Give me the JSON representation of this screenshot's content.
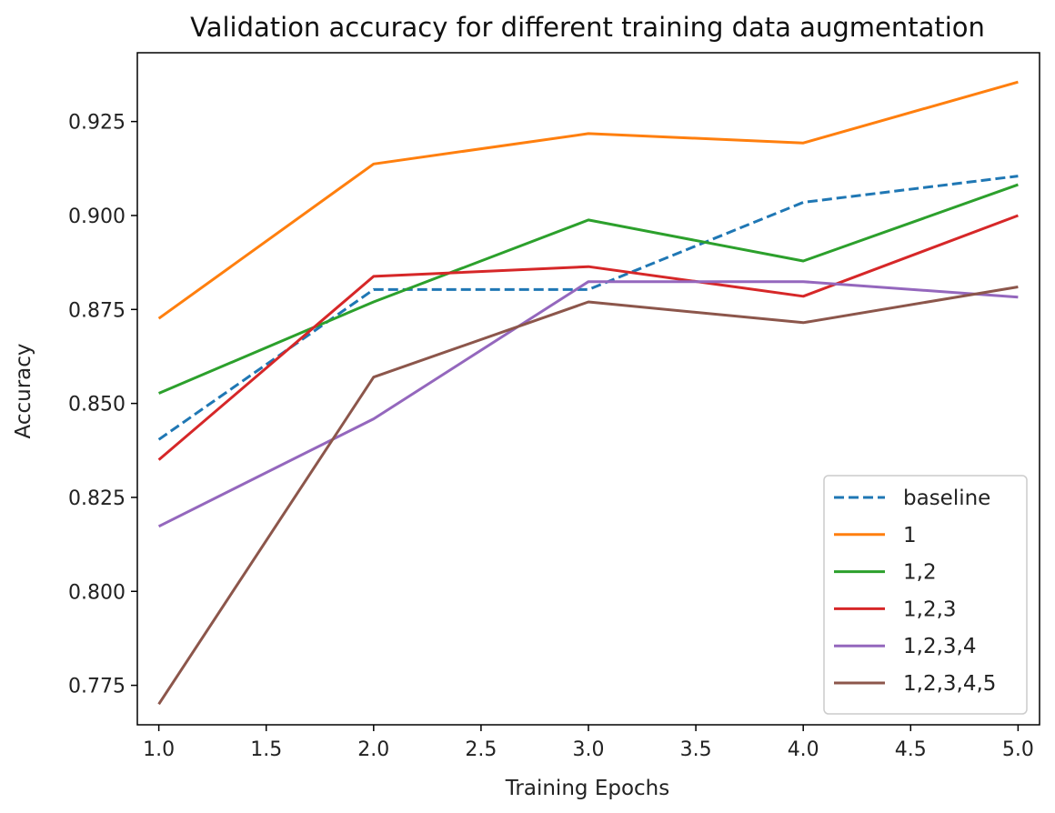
{
  "chart_data": {
    "type": "line",
    "title": "Validation accuracy for different training data augmentation",
    "xlabel": "Training Epochs",
    "ylabel": "Accuracy",
    "xlim": [
      0.9,
      5.1
    ],
    "ylim": [
      0.7645,
      0.9433
    ],
    "grid": false,
    "legend_position": "lower-right",
    "x_ticks": [
      1.0,
      1.5,
      2.0,
      2.5,
      3.0,
      3.5,
      4.0,
      4.5,
      5.0
    ],
    "x_tick_labels": [
      "1.0",
      "1.5",
      "2.0",
      "2.5",
      "3.0",
      "3.5",
      "4.0",
      "4.5",
      "5.0"
    ],
    "y_ticks": [
      0.775,
      0.8,
      0.825,
      0.85,
      0.875,
      0.9,
      0.925
    ],
    "y_tick_labels": [
      "0.775",
      "0.800",
      "0.825",
      "0.850",
      "0.875",
      "0.900",
      "0.925"
    ],
    "x": [
      1,
      2,
      3,
      4,
      5
    ],
    "series": [
      {
        "name": "baseline",
        "color": "#1f77b4",
        "dash": true,
        "values": [
          0.8404,
          0.8803,
          0.8803,
          0.9035,
          0.9105
        ]
      },
      {
        "name": "1",
        "color": "#ff7f0e",
        "dash": false,
        "values": [
          0.8726,
          0.9137,
          0.9218,
          0.9193,
          0.9355
        ]
      },
      {
        "name": "1,2",
        "color": "#2ca02c",
        "dash": false,
        "values": [
          0.8527,
          0.877,
          0.8988,
          0.8879,
          0.9082
        ]
      },
      {
        "name": "1,2,3",
        "color": "#d62728",
        "dash": false,
        "values": [
          0.835,
          0.8838,
          0.8864,
          0.8785,
          0.9
        ]
      },
      {
        "name": "1,2,3,4",
        "color": "#9467bd",
        "dash": false,
        "values": [
          0.8173,
          0.8459,
          0.8824,
          0.8824,
          0.8783
        ]
      },
      {
        "name": "1,2,3,4,5",
        "color": "#8c564b",
        "dash": false,
        "values": [
          0.77,
          0.857,
          0.877,
          0.8715,
          0.881
        ]
      }
    ]
  }
}
